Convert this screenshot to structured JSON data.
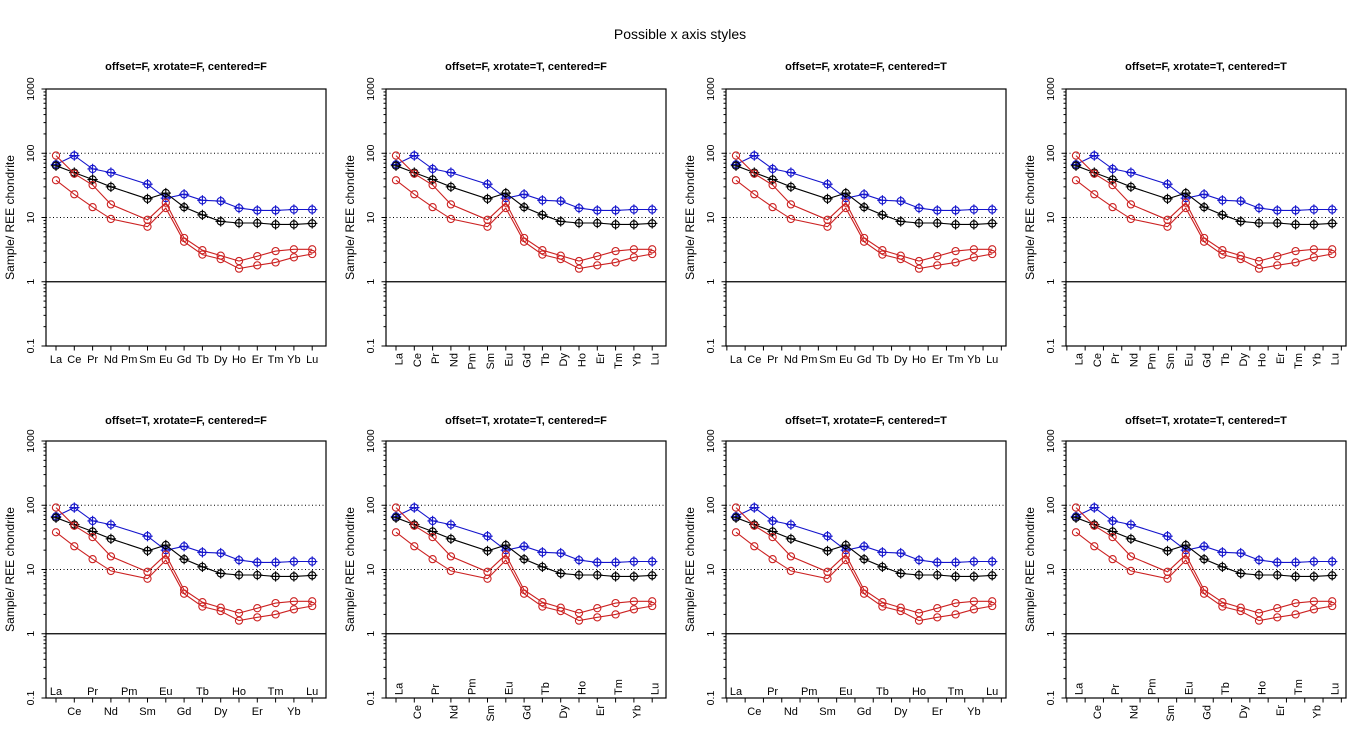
{
  "main_title": "Possible x axis styles",
  "ylabel": "Sample/ REE chondrite",
  "y_tick_labels": [
    "0.1",
    "1",
    "10",
    "100",
    "1000"
  ],
  "subplots": [
    {
      "title": "offset=F, xrotate=F, centered=F",
      "offset": false,
      "xrotate": false,
      "centered": false
    },
    {
      "title": "offset=F, xrotate=T, centered=F",
      "offset": false,
      "xrotate": true,
      "centered": false
    },
    {
      "title": "offset=F, xrotate=F, centered=T",
      "offset": false,
      "xrotate": false,
      "centered": true
    },
    {
      "title": "offset=F, xrotate=T, centered=T",
      "offset": false,
      "xrotate": true,
      "centered": true
    },
    {
      "title": "offset=T, xrotate=F, centered=F",
      "offset": true,
      "xrotate": false,
      "centered": false
    },
    {
      "title": "offset=T, xrotate=T, centered=F",
      "offset": true,
      "xrotate": true,
      "centered": false
    },
    {
      "title": "offset=T, xrotate=F, centered=T",
      "offset": true,
      "xrotate": false,
      "centered": true
    },
    {
      "title": "offset=T, xrotate=T, centered=T",
      "offset": true,
      "xrotate": true,
      "centered": true
    }
  ],
  "chart_data": {
    "type": "line",
    "title": "Possible x axis styles",
    "x_categories": [
      "La",
      "Ce",
      "Pr",
      "Nd",
      "Pm",
      "Sm",
      "Eu",
      "Gd",
      "Tb",
      "Dy",
      "Ho",
      "Er",
      "Tm",
      "Yb",
      "Lu"
    ],
    "ylabel": "Sample/ REE chondrite",
    "yscale": "log",
    "ylim": [
      0.1,
      1000
    ],
    "y_ticks": [
      0.1,
      1,
      10,
      100,
      1000
    ],
    "grid": false,
    "legend": "none",
    "reference_lines": [
      {
        "y": 100,
        "style": "dotted"
      },
      {
        "y": 10,
        "style": "dotted"
      },
      {
        "y": 1,
        "style": "solid"
      }
    ],
    "series": [
      {
        "name": "blue",
        "color": "#1414cc",
        "marker": "circle-plus",
        "values": [
          67,
          92,
          57,
          50,
          null,
          33,
          20,
          23,
          18.5,
          18,
          14,
          12.9,
          12.9,
          13.3,
          13.3
        ]
      },
      {
        "name": "black",
        "color": "#000000",
        "marker": "circle-plus",
        "values": [
          64,
          50,
          39,
          30,
          null,
          19.5,
          24,
          14.5,
          11,
          8.7,
          8.2,
          8.2,
          7.8,
          7.8,
          8.1
        ]
      },
      {
        "name": "red-upper",
        "color": "#cc2222",
        "marker": "circle",
        "values": [
          92,
          48,
          32,
          16,
          null,
          9.2,
          17,
          4.8,
          3.1,
          2.55,
          2.1,
          2.5,
          3.0,
          3.2,
          3.2
        ]
      },
      {
        "name": "red-lower",
        "color": "#cc2222",
        "marker": "circle",
        "values": [
          38,
          23,
          14.5,
          9.5,
          null,
          7.2,
          14,
          4.2,
          2.65,
          2.25,
          1.6,
          1.8,
          2.0,
          2.4,
          2.7
        ]
      }
    ]
  }
}
